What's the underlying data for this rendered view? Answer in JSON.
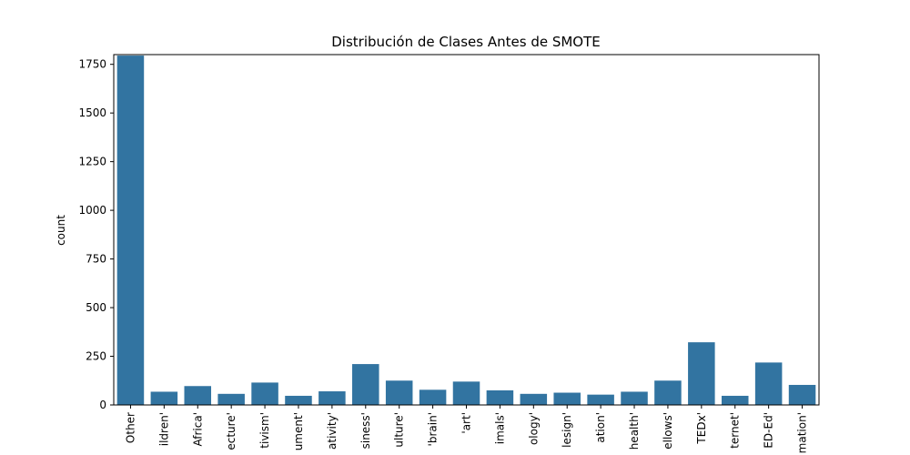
{
  "chart_data": {
    "type": "bar",
    "title": "Distribución de Clases Antes de SMOTE",
    "xlabel": "",
    "ylabel": "count",
    "ylim": [
      0,
      1800
    ],
    "yticks": [
      0,
      250,
      500,
      750,
      1000,
      1250,
      1500,
      1750
    ],
    "grid": false,
    "bar_color": "#3274a1",
    "categories": [
      "Other",
      "ildren'",
      "Africa'",
      "ecture'",
      "tivism'",
      "ument'",
      "ativity'",
      "siness'",
      "ulture'",
      "'brain'",
      "'art'",
      "imals'",
      "ology'",
      "lesign'",
      "ation'",
      "health'",
      "ellows'",
      "TEDx'",
      "ternet'",
      "ED-Ed'",
      "mation'"
    ],
    "values": [
      1795,
      68,
      97,
      57,
      115,
      47,
      70,
      210,
      125,
      78,
      120,
      75,
      57,
      63,
      53,
      68,
      125,
      322,
      47,
      218,
      103
    ]
  }
}
